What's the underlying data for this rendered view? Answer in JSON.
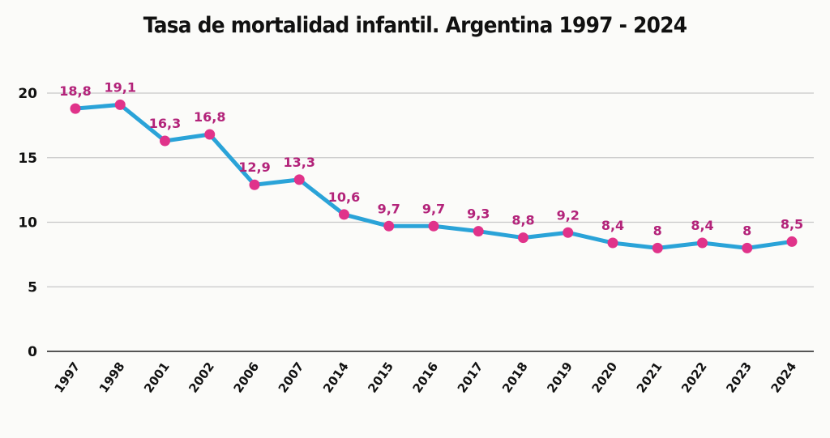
{
  "chart_data": {
    "type": "line",
    "title": "Tasa de mortalidad infantil. Argentina 1997 - 2024",
    "xlabel": "",
    "ylabel": "",
    "categories": [
      "1997",
      "1998",
      "2001",
      "2002",
      "2006",
      "2007",
      "2014",
      "2015",
      "2016",
      "2017",
      "2018",
      "2019",
      "2020",
      "2021",
      "2022",
      "2023",
      "2024"
    ],
    "series": [
      {
        "name": "Tasa de mortalidad infantil",
        "values": [
          18.8,
          19.1,
          16.3,
          16.8,
          12.9,
          13.3,
          10.6,
          9.7,
          9.7,
          9.3,
          8.8,
          9.2,
          8.4,
          8,
          8.4,
          8,
          8.5
        ],
        "labels": [
          "18,8",
          "19,1",
          "16,3",
          "16,8",
          "12,9",
          "13,3",
          "10,6",
          "9,7",
          "9,7",
          "9,3",
          "8,8",
          "9,2",
          "8,4",
          "8",
          "8,4",
          "8",
          "8,5"
        ],
        "line_color": "#2aa3d8",
        "marker_color": "#e0338a",
        "label_color": "#b3237a"
      }
    ],
    "ylim": [
      0,
      20
    ],
    "yticks": [
      0,
      5,
      10,
      15,
      20
    ],
    "grid": true,
    "legend": "none"
  }
}
